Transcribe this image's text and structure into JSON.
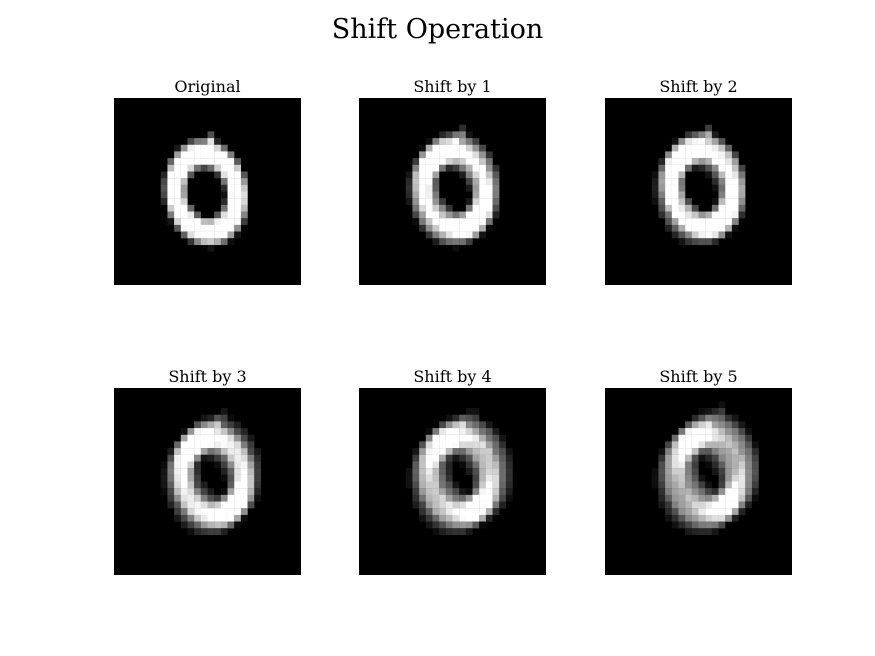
{
  "figure": {
    "title": "Shift Operation",
    "panels": [
      {
        "title": "Original",
        "shift": 0
      },
      {
        "title": "Shift by 1",
        "shift": 1
      },
      {
        "title": "Shift by 2",
        "shift": 2
      },
      {
        "title": "Shift by 3",
        "shift": 3
      },
      {
        "title": "Shift by 4",
        "shift": 4
      },
      {
        "title": "Shift by 5",
        "shift": 5
      }
    ],
    "colors": {
      "background": "#000000",
      "digit": "#ffffff"
    }
  }
}
